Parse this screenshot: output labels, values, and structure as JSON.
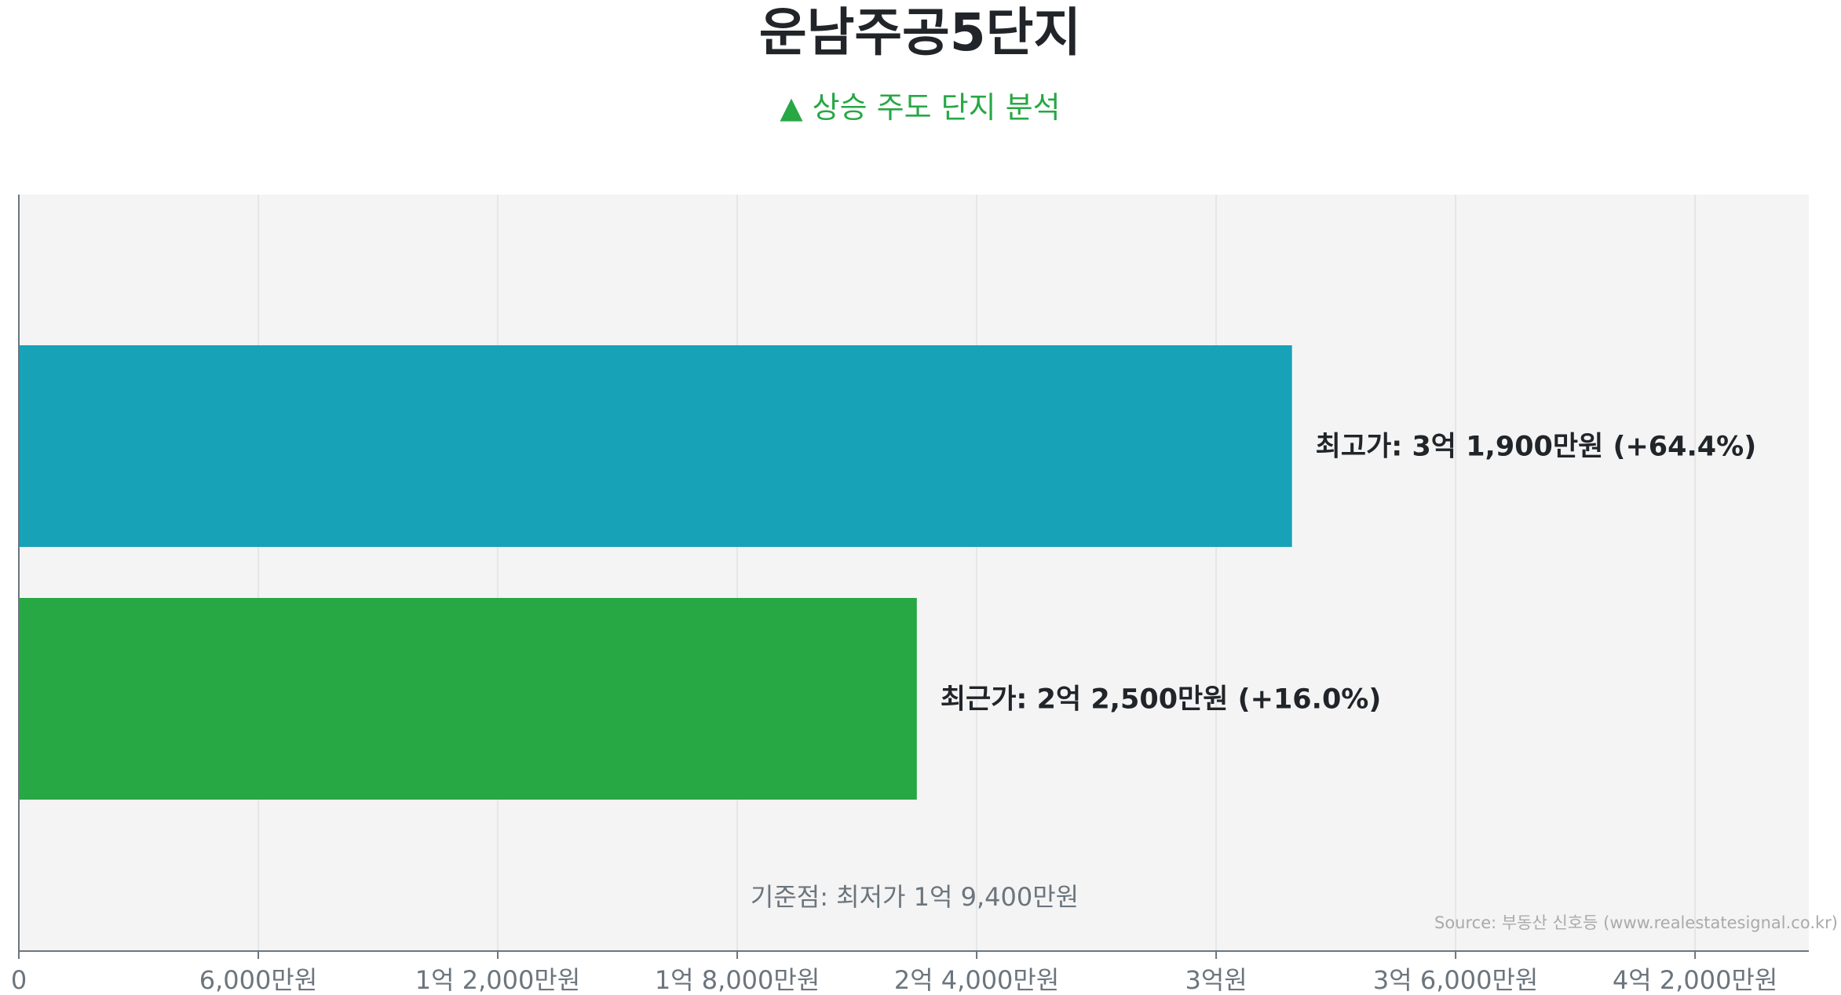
{
  "chart_data": {
    "type": "bar",
    "orientation": "horizontal",
    "title": "운남주공5단지",
    "subtitle": "▲ 상승 주도 단지 분석",
    "categories": [
      "최고가",
      "최근가"
    ],
    "values": [
      319000000,
      225000000
    ],
    "bar_labels": [
      "최고가: 3억 1,900만원 (+64.4%)",
      "최근가: 2억 2,500만원 (+16.0%)"
    ],
    "colors": [
      "#17a2b8",
      "#28a745"
    ],
    "xlim": [
      0,
      448500000
    ],
    "x_ticks": [
      0,
      60000000,
      120000000,
      180000000,
      240000000,
      300000000,
      360000000,
      420000000
    ],
    "x_tick_labels": [
      "0",
      "6,000만원",
      "1억 2,000만원",
      "1억 8,000만원",
      "2억 4,000만원",
      "3억원",
      "3억 6,000만원",
      "4억 2,000만원"
    ],
    "grid": true,
    "baseline_note": "기준점: 최저가 1억 9,400만원",
    "source": "Source: 부동산 신호등 (www.realestatesignal.co.kr)",
    "plot_background": "#f4f4f4"
  }
}
